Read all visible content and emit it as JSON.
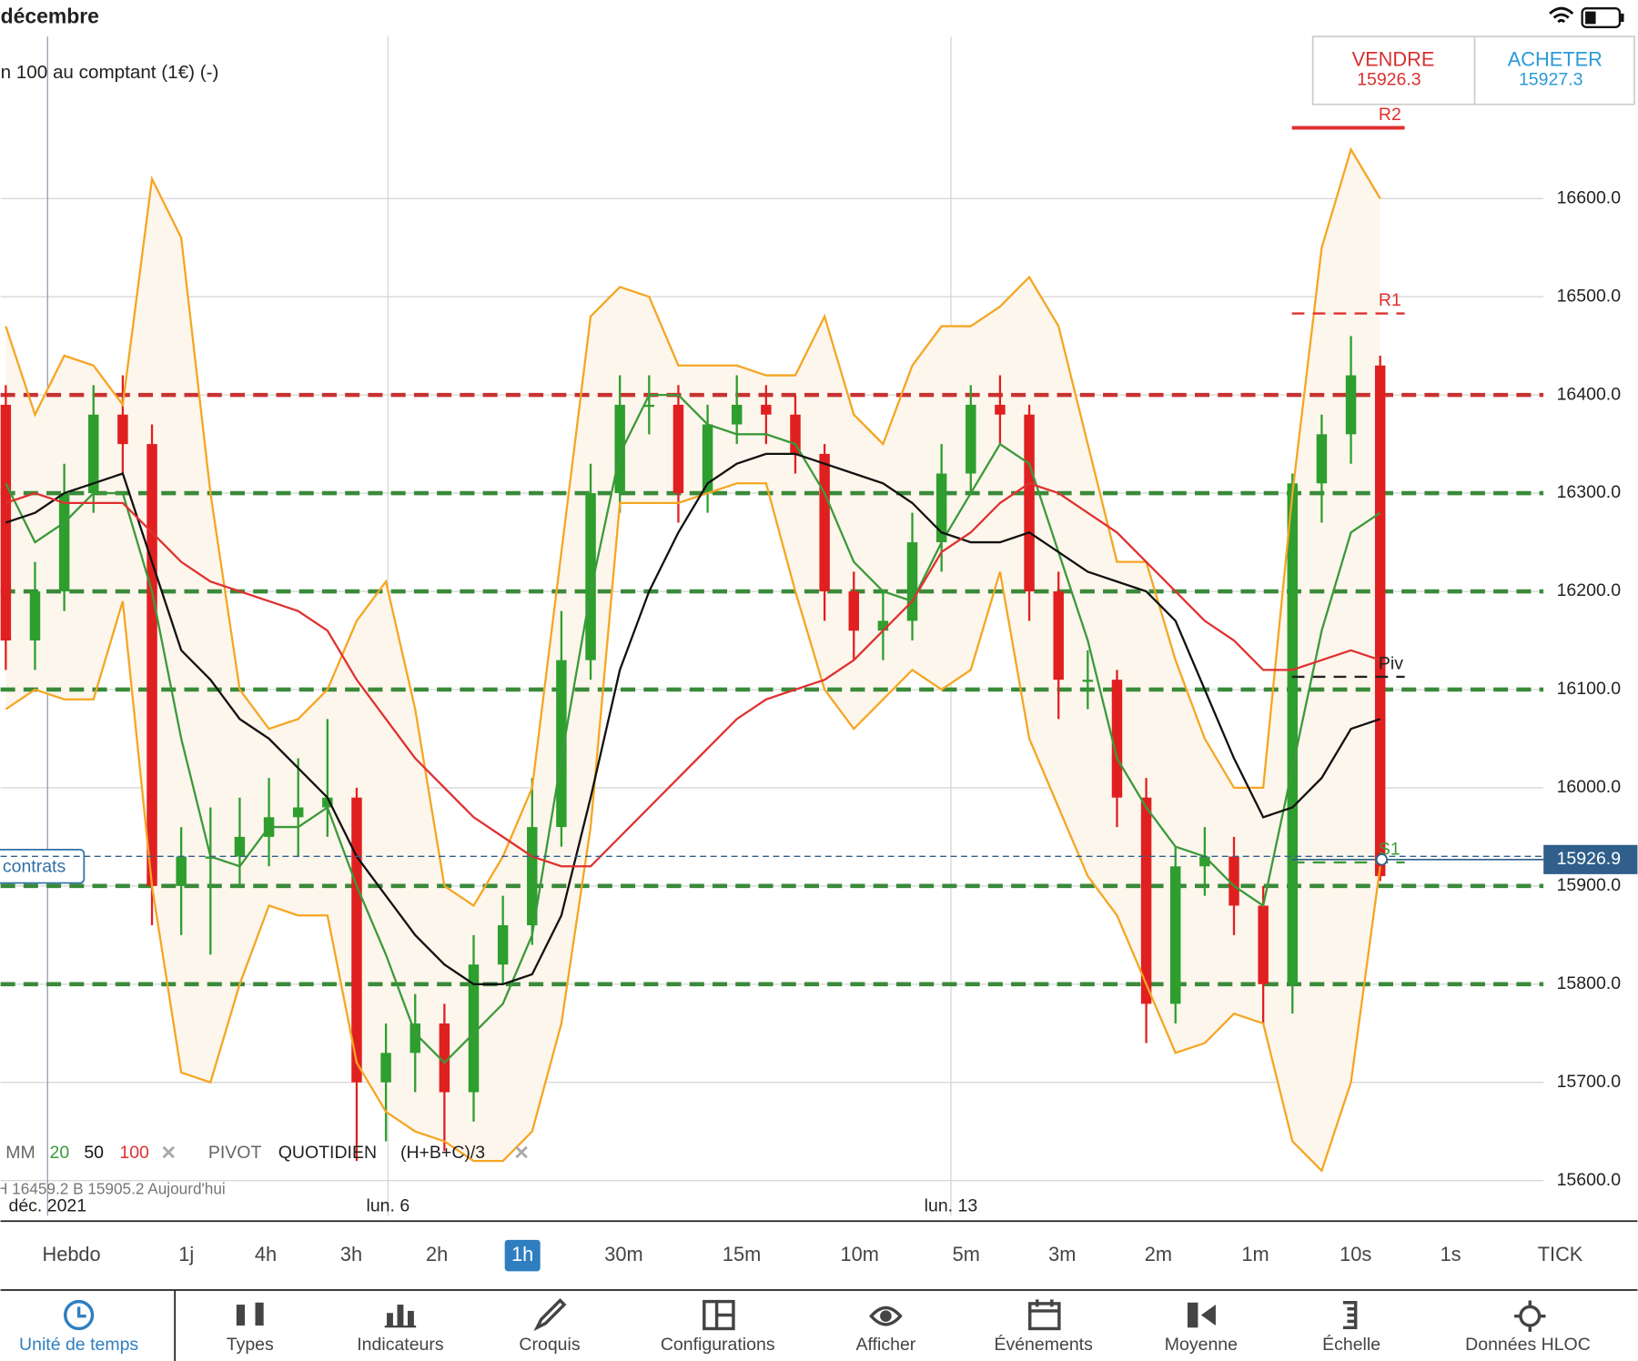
{
  "status_bar": {
    "title": "décembre"
  },
  "instrument": "n 100 au comptant (1€) (-)",
  "trade": {
    "sell_label": "VENDRE",
    "sell_price": "15926.3",
    "buy_label": "ACHETER",
    "buy_price": "15927.3"
  },
  "position_label": "contrats",
  "chart_data": {
    "type": "candlestick",
    "x": [
      0,
      1,
      2,
      3,
      4,
      5,
      6,
      7,
      8,
      9,
      10,
      11,
      12,
      13,
      14,
      15,
      16,
      17,
      18,
      19,
      20,
      21,
      22,
      23,
      24,
      25,
      26,
      27,
      28,
      29,
      30,
      31,
      32,
      33,
      34,
      35,
      36,
      37,
      38,
      39,
      40,
      41,
      42,
      43,
      44,
      45,
      46,
      47
    ],
    "open": [
      16390,
      16150,
      16200,
      16300,
      16380,
      16350,
      15900,
      15930,
      15930,
      15950,
      15970,
      15980,
      15990,
      15700,
      15730,
      15760,
      15690,
      15820,
      15860,
      15960,
      16130,
      16300,
      16390,
      16390,
      16300,
      16370,
      16390,
      16380,
      16340,
      16200,
      16160,
      16170,
      16250,
      16320,
      16390,
      16380,
      16200,
      16110,
      16110,
      15990,
      15780,
      15920,
      15930,
      15880,
      15800,
      16310,
      16360,
      16430
    ],
    "high": [
      16410,
      16230,
      16330,
      16410,
      16420,
      16370,
      15960,
      15980,
      15990,
      16010,
      16030,
      16070,
      16000,
      15760,
      15790,
      15780,
      15850,
      15890,
      16010,
      16180,
      16330,
      16420,
      16420,
      16410,
      16390,
      16420,
      16410,
      16400,
      16350,
      16220,
      16200,
      16280,
      16350,
      16410,
      16420,
      16390,
      16220,
      16140,
      16120,
      16010,
      15940,
      15960,
      15950,
      15900,
      16320,
      16380,
      16460,
      16440
    ],
    "low": [
      16120,
      16120,
      16180,
      16280,
      16320,
      15860,
      15850,
      15830,
      15900,
      15920,
      15930,
      15950,
      15620,
      15640,
      15690,
      15630,
      15660,
      15800,
      15840,
      15940,
      16110,
      16280,
      16360,
      16270,
      16280,
      16350,
      16350,
      16320,
      16170,
      16130,
      16130,
      16150,
      16220,
      16300,
      16350,
      16170,
      16070,
      16080,
      15960,
      15740,
      15760,
      15890,
      15850,
      15760,
      15770,
      16270,
      16330,
      15905
    ],
    "close": [
      16150,
      16200,
      16300,
      16380,
      16350,
      15900,
      15930,
      15930,
      15950,
      15970,
      15980,
      15990,
      15700,
      15730,
      15760,
      15690,
      15820,
      15860,
      15960,
      16130,
      16300,
      16390,
      16390,
      16300,
      16370,
      16390,
      16380,
      16340,
      16200,
      16160,
      16170,
      16250,
      16320,
      16390,
      16380,
      16200,
      16110,
      16110,
      15990,
      15780,
      15920,
      15930,
      15880,
      15800,
      16310,
      16360,
      16420,
      15910
    ],
    "up_color": "#2e9e2e",
    "down_color": "#e02020",
    "bands": {
      "color": "#f5a623",
      "fill": "#fdf6ec",
      "upper": [
        16470,
        16380,
        16440,
        16430,
        16390,
        16620,
        16560,
        16300,
        16100,
        16060,
        16070,
        16100,
        16170,
        16210,
        16080,
        15900,
        15880,
        15930,
        16000,
        16240,
        16480,
        16510,
        16500,
        16430,
        16430,
        16430,
        16420,
        16420,
        16480,
        16380,
        16350,
        16430,
        16470,
        16470,
        16490,
        16520,
        16470,
        16350,
        16230,
        16230,
        16130,
        16050,
        16000,
        16000,
        16300,
        16550,
        16650,
        16600
      ],
      "lower": [
        16080,
        16100,
        16090,
        16090,
        16190,
        15900,
        15710,
        15700,
        15800,
        15880,
        15870,
        15870,
        15720,
        15670,
        15650,
        15640,
        15620,
        15620,
        15650,
        15760,
        15960,
        16290,
        16290,
        16290,
        16300,
        16310,
        16310,
        16200,
        16100,
        16060,
        16090,
        16120,
        16100,
        16120,
        16220,
        16050,
        15980,
        15910,
        15870,
        15800,
        15730,
        15740,
        15770,
        15760,
        15640,
        15610,
        15700,
        15920
      ]
    },
    "lines": [
      {
        "name": "20",
        "color": "#3a9a3a",
        "values": [
          16310,
          16250,
          16270,
          16300,
          16300,
          16200,
          16050,
          15930,
          15920,
          15960,
          15960,
          15980,
          15900,
          15830,
          15750,
          15720,
          15750,
          15780,
          15850,
          16030,
          16200,
          16340,
          16400,
          16400,
          16370,
          16360,
          16360,
          16350,
          16300,
          16230,
          16200,
          16190,
          16250,
          16300,
          16350,
          16330,
          16240,
          16150,
          16030,
          15980,
          15940,
          15930,
          15900,
          15880,
          16020,
          16160,
          16260,
          16280
        ]
      },
      {
        "name": "50",
        "color": "#111111",
        "values": [
          16270,
          16280,
          16300,
          16310,
          16320,
          16230,
          16140,
          16110,
          16070,
          16050,
          16020,
          15990,
          15930,
          15890,
          15850,
          15820,
          15800,
          15800,
          15810,
          15870,
          15990,
          16120,
          16200,
          16260,
          16310,
          16330,
          16340,
          16340,
          16330,
          16320,
          16310,
          16290,
          16260,
          16250,
          16250,
          16260,
          16240,
          16220,
          16210,
          16200,
          16170,
          16100,
          16030,
          15970,
          15980,
          16010,
          16060,
          16070
        ]
      },
      {
        "name": "100",
        "color": "#e03030",
        "values": [
          16290,
          16300,
          16290,
          16290,
          16290,
          16260,
          16230,
          16210,
          16200,
          16190,
          16180,
          16160,
          16110,
          16070,
          16030,
          16000,
          15970,
          15950,
          15930,
          15920,
          15920,
          15950,
          15980,
          16010,
          16040,
          16070,
          16090,
          16100,
          16110,
          16130,
          16160,
          16190,
          16240,
          16260,
          16290,
          16310,
          16300,
          16280,
          16260,
          16230,
          16200,
          16170,
          16150,
          16120,
          16120,
          16130,
          16140,
          16130
        ]
      }
    ],
    "levels": [
      {
        "value": 16400,
        "color": "#c83232"
      },
      {
        "value": 16300,
        "color": "#3a8a3a"
      },
      {
        "value": 16200,
        "color": "#3a8a3a"
      },
      {
        "value": 16100,
        "color": "#3a8a3a"
      },
      {
        "value": 15900,
        "color": "#3a8a3a"
      },
      {
        "value": 15800,
        "color": "#3a8a3a"
      }
    ],
    "pivots": [
      {
        "label": "R2",
        "value": 16672,
        "color": "#e03030",
        "dash": false
      },
      {
        "label": "R1",
        "value": 16483,
        "color": "#e03030",
        "dash": true
      },
      {
        "label": "Piv",
        "value": 16113,
        "color": "#222222",
        "dash": true
      },
      {
        "label": "S1",
        "value": 15924,
        "color": "#3a9a3a",
        "dash": true
      }
    ],
    "last_price": {
      "value": 15926.9,
      "label": "15926.9",
      "color": "#2f5f8a"
    },
    "legend": {
      "label": "MM",
      "pivot_label": "PIVOT",
      "pivot_period": "QUOTIDIEN",
      "pivot_formula": "(H+B+C)/3"
    },
    "hlc_info": "H 16459.2   B 15905.2   Aujourd'hui",
    "xlim": [
      -0.18,
      52.3
    ],
    "ylim": [
      15564,
      16765
    ],
    "xticks": [
      {
        "value": 1.43,
        "label": "déc. 2021"
      },
      {
        "value": 13.07,
        "label": "lun. 6"
      },
      {
        "value": 32.32,
        "label": "lun. 13"
      }
    ],
    "yticks": [
      {
        "value": 15600,
        "label": "15600.0"
      },
      {
        "value": 15700,
        "label": "15700.0"
      },
      {
        "value": 15800,
        "label": "15800.0"
      },
      {
        "value": 15900,
        "label": "15900.0"
      },
      {
        "value": 16000,
        "label": "16000.0"
      },
      {
        "value": 16100,
        "label": "16100.0"
      },
      {
        "value": 16200,
        "label": "16200.0"
      },
      {
        "value": 16300,
        "label": "16300.0"
      },
      {
        "value": 16400,
        "label": "16400.0"
      },
      {
        "value": 16500,
        "label": "16500.0"
      },
      {
        "value": 16600,
        "label": "16600.0"
      }
    ],
    "grid": true
  },
  "timeframes": {
    "items": [
      "Hebdo",
      "1j",
      "4h",
      "3h",
      "2h",
      "1h",
      "30m",
      "15m",
      "10m",
      "5m",
      "3m",
      "2m",
      "1m",
      "10s",
      "1s",
      "TICK"
    ],
    "selected": 5
  },
  "toolbar": {
    "items": [
      "Unité de temps",
      "Types",
      "Indicateurs",
      "Croquis",
      "Configurations",
      "Afficher",
      "Événements",
      "Moyenne",
      "Échelle",
      "Données HLOC"
    ],
    "selected": 0
  }
}
